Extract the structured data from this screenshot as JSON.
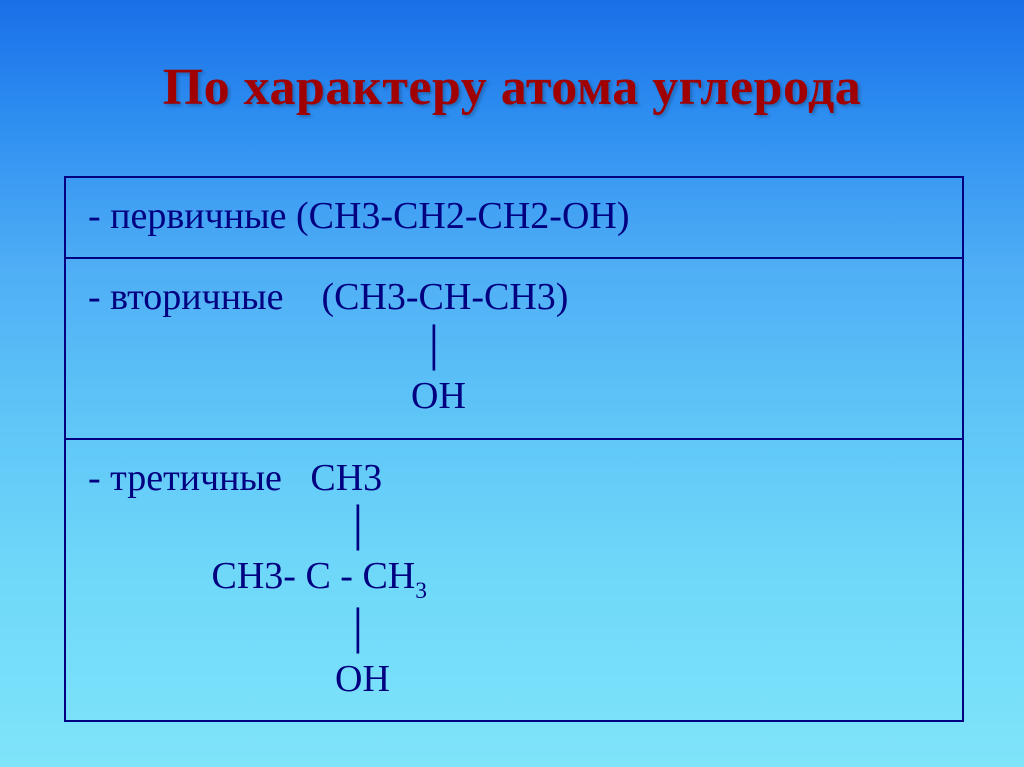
{
  "slide": {
    "title": "По характеру атома углерода",
    "background_gradient": {
      "top": "#1a6fe8",
      "bottom": "#7fe4fa"
    },
    "title_color": "#a00000",
    "text_color": "#000080",
    "border_color": "#000080",
    "title_fontsize": 52,
    "cell_fontsize": 38
  },
  "rows": {
    "primary": {
      "label": "- первичные",
      "formula": "(СН3-СН2-СН2-ОН)"
    },
    "secondary": {
      "label": "- вторичные",
      "formula_l1": "(СН3-СН-СН3)",
      "formula_l2": "│",
      "formula_l3": "ОН"
    },
    "tertiary": {
      "label": "- третичные",
      "formula_l1": "СН3",
      "formula_l2": "│",
      "formula_l3_pre": "СН3- С - СН",
      "formula_l3_sub": "3",
      "formula_l4": "│",
      "formula_l5": "ОН"
    }
  }
}
